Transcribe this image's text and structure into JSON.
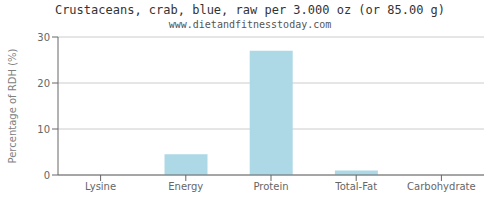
{
  "chart_data": {
    "type": "bar",
    "title": "Crustaceans, crab, blue, raw per 3.000 oz (or 85.00 g)",
    "subtitle": "www.dietandfitnesstoday.com",
    "categories": [
      "Lysine",
      "Energy",
      "Protein",
      "Total-Fat",
      "Carbohydrate"
    ],
    "values": [
      0,
      4.5,
      27,
      1.0,
      0
    ],
    "color": "#add8e6",
    "ylabel": "Percentage of RDH (%)",
    "ylim": [
      0,
      30
    ],
    "yticks": [
      0,
      10,
      20,
      30
    ],
    "grid": true
  }
}
